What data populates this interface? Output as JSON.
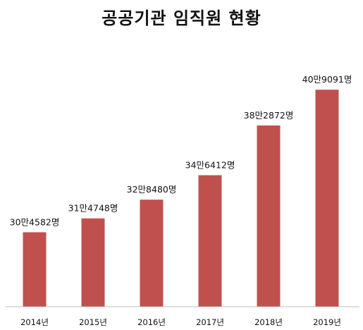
{
  "chart_data": {
    "type": "bar",
    "title": "공공기관 임직원 현황",
    "xlabel": "",
    "ylabel": "",
    "categories": [
      "2014년",
      "2015년",
      "2016년",
      "2017년",
      "2018년",
      "2019년"
    ],
    "values": [
      304582,
      314748,
      328480,
      346412,
      382872,
      409091
    ],
    "data_labels": [
      "30만4582명",
      "31만4748명",
      "32만8480명",
      "34만6412명",
      "38만2872명",
      "40만9091명"
    ],
    "ylim": [
      250000,
      420000
    ],
    "grid": false,
    "legend": "none",
    "bar_color": "#c0504d"
  }
}
